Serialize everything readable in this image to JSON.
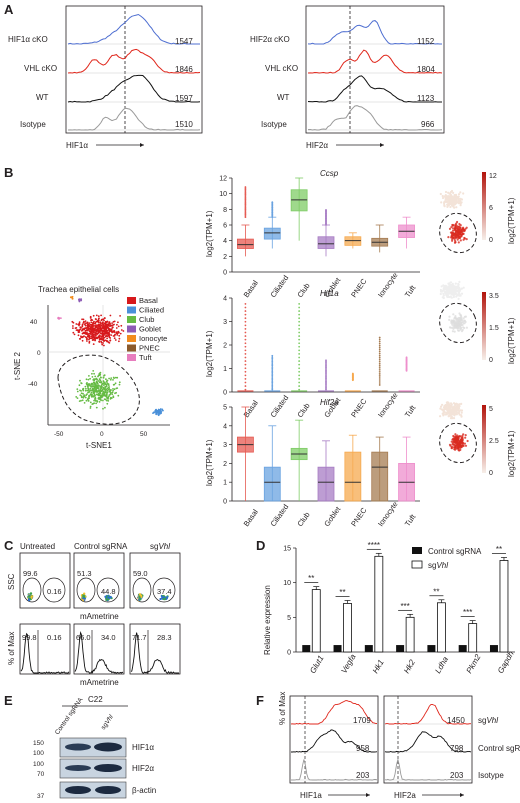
{
  "panel_labels": [
    "A",
    "B",
    "C",
    "D",
    "E",
    "F"
  ],
  "panelA": {
    "left": {
      "axis_label": "HIF1α",
      "tracks": [
        {
          "name": "HIF1α cKO",
          "mfi": "1547",
          "color": "#4f6fd1"
        },
        {
          "name": "VHL cKO",
          "mfi": "1846",
          "color": "#e0271c"
        },
        {
          "name": "WT",
          "mfi": "1597",
          "color": "#111111"
        },
        {
          "name": "Isotype",
          "mfi": "1510",
          "color": "#9a9a9a"
        }
      ]
    },
    "right": {
      "axis_label": "HIF2α",
      "tracks": [
        {
          "name": "HIF2α cKO",
          "mfi": "1152",
          "color": "#4f6fd1"
        },
        {
          "name": "VHL cKO",
          "mfi": "1804",
          "color": "#e0271c"
        },
        {
          "name": "WT",
          "mfi": "1123",
          "color": "#111111"
        },
        {
          "name": "Isotype",
          "mfi": "966",
          "color": "#9a9a9a"
        }
      ]
    }
  },
  "panelB": {
    "tsne_title": "Trachea epithelial cells",
    "xaxis": "t-SNE1",
    "yaxis": "t-SNE 2",
    "xticks": [
      "-50",
      "0",
      "50"
    ],
    "yticks": [
      "40",
      "0",
      "-40"
    ],
    "legend": [
      {
        "name": "Basal",
        "color": "#d7191c"
      },
      {
        "name": "Ciliated",
        "color": "#4a90d9"
      },
      {
        "name": "Club",
        "color": "#66bb44"
      },
      {
        "name": "Goblet",
        "color": "#8e5bb5"
      },
      {
        "name": "Ionocyte",
        "color": "#f28c1e"
      },
      {
        "name": "PNEC",
        "color": "#8b5a2b"
      },
      {
        "name": "Tuft",
        "color": "#e77dbe"
      }
    ],
    "box_ylabel": "log2(TPM+1)",
    "categories": [
      "Basal",
      "Ciliated",
      "Club",
      "Goblet",
      "PNEC",
      "Ionocyte",
      "Tuft"
    ],
    "genes": [
      {
        "name": "Ccsp",
        "yticks": [
          "0",
          "2",
          "4",
          "6",
          "8",
          "10",
          "12"
        ],
        "colorbar": [
          "12",
          "6",
          "0"
        ]
      },
      {
        "name": "Hif1a",
        "yticks": [
          "0",
          "1",
          "2",
          "3",
          "4"
        ],
        "colorbar": [
          "3.5",
          "1.5",
          "0"
        ]
      },
      {
        "name": "Hif2a",
        "yticks": [
          "0",
          "1",
          "2",
          "3",
          "4",
          "5"
        ],
        "colorbar": [
          "5",
          "2.5",
          "0"
        ]
      }
    ]
  },
  "panelC": {
    "columns": [
      "Untreated",
      "Control sgRNA",
      "sgVhl"
    ],
    "ssc_label": "SSC",
    "x_label": "mAmetrine",
    "y_label": "% of Max",
    "top_values": [
      [
        "99.6",
        "0.16"
      ],
      [
        "51.3",
        "44.8"
      ],
      [
        "59.0",
        "37.4"
      ]
    ],
    "bottom_values": [
      [
        "99.8",
        "0.16"
      ],
      [
        "66.0",
        "34.0"
      ],
      [
        "71.7",
        "28.3"
      ]
    ]
  },
  "panelD": {
    "ylabel": "Relative expression",
    "yticks": [
      "0",
      "5",
      "10",
      "15"
    ],
    "legend": [
      "Control sgRNA",
      "sgVhl"
    ],
    "genes": [
      "Glut1",
      "Vegfa",
      "Hk1",
      "Hk2",
      "Ldha",
      "Pkm2",
      "Gapdh"
    ],
    "significance": [
      "**",
      "**",
      "****",
      "***",
      "**",
      "***",
      "**"
    ]
  },
  "chart_data": {
    "type": "bar",
    "title": "",
    "xlabel": "",
    "ylabel": "Relative expression",
    "ylim": [
      0,
      15
    ],
    "categories": [
      "Glut1",
      "Vegfa",
      "Hk1",
      "Hk2",
      "Ldha",
      "Pkm2",
      "Gapdh"
    ],
    "series": [
      {
        "name": "Control sgRNA",
        "values": [
          1,
          1,
          1,
          1,
          1,
          1,
          1
        ]
      },
      {
        "name": "sgVhl",
        "values": [
          9.0,
          7.0,
          13.8,
          5.0,
          7.1,
          4.1,
          13.2
        ]
      }
    ]
  },
  "panelE": {
    "header": "C22",
    "lanes": [
      "Control sgRNA",
      "sgVhl"
    ],
    "mw": [
      "150",
      "100",
      "100",
      "70",
      "37"
    ],
    "bands": [
      "HIF1α",
      "HIF2α",
      "β-actin"
    ]
  },
  "panelF": {
    "ylabel": "% of Max",
    "left_axis": "HIF1a",
    "right_axis": "HIF2a",
    "row_labels": [
      "sgVhl",
      "Control sgRNA",
      "Isotype"
    ],
    "left_values": [
      "1709",
      "958",
      "203"
    ],
    "right_values": [
      "1450",
      "798",
      "203"
    ]
  }
}
